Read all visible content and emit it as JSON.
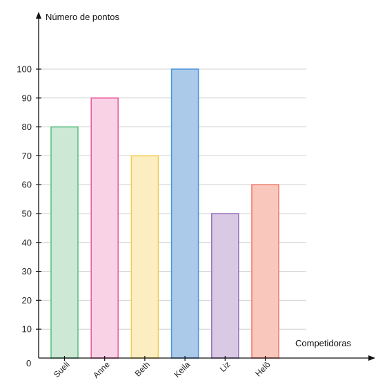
{
  "chart_data": {
    "type": "bar",
    "ylabel": "Número de pontos",
    "xlabel": "Competidoras",
    "origin_label": "0",
    "categories": [
      "Sueli",
      "Anne",
      "Beth",
      "Keila",
      "Liz",
      "Helô"
    ],
    "values": [
      80,
      90,
      70,
      100,
      50,
      60
    ],
    "ylim": [
      0,
      100
    ],
    "yticks": [
      10,
      20,
      30,
      40,
      50,
      60,
      70,
      80,
      90,
      100
    ],
    "grid": true,
    "colors": [
      {
        "fill": "#cde8d5",
        "stroke": "#5cc184"
      },
      {
        "fill": "#f9d2e6",
        "stroke": "#ea5fa0"
      },
      {
        "fill": "#fdeec2",
        "stroke": "#f2cd54"
      },
      {
        "fill": "#abcaea",
        "stroke": "#4f96da"
      },
      {
        "fill": "#d9c9e4",
        "stroke": "#9d78bd"
      },
      {
        "fill": "#fac7bd",
        "stroke": "#ee7d6c"
      }
    ]
  }
}
